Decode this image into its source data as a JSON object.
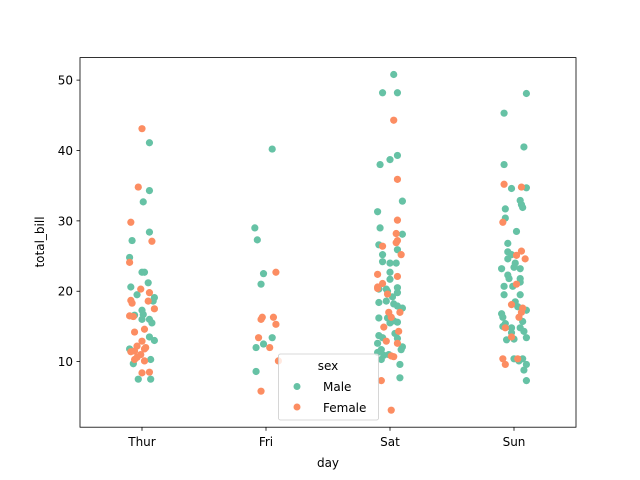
{
  "chart_data": {
    "type": "scatter",
    "subtype": "stripplot",
    "title": "",
    "xlabel": "day",
    "ylabel": "total_bill",
    "categories": [
      "Thur",
      "Fri",
      "Sat",
      "Sun"
    ],
    "xlim": [
      -0.5,
      3.5
    ],
    "ylim": [
      0.68,
      53.2
    ],
    "yticks": [
      10,
      20,
      30,
      40,
      50
    ],
    "ytick_labels": [
      "10",
      "20",
      "30",
      "40",
      "50"
    ],
    "grid": false,
    "legend": {
      "title": "sex",
      "placement": "bottom-center",
      "entries": [
        "Male",
        "Female"
      ]
    },
    "point_format": "[day_index, jitter, total_bill]",
    "series": [
      {
        "name": "Male",
        "color": "#66c2a5",
        "points": [
          [
            0,
            0.06,
            41.1
          ],
          [
            0,
            0.06,
            34.3
          ],
          [
            0,
            0.01,
            32.7
          ],
          [
            0,
            0.06,
            28.4
          ],
          [
            0,
            -0.08,
            27.2
          ],
          [
            0,
            -0.1,
            24.8
          ],
          [
            0,
            0,
            22.7
          ],
          [
            0,
            0.02,
            22.7
          ],
          [
            0,
            0.05,
            21.2
          ],
          [
            0,
            -0.09,
            20.6
          ],
          [
            0,
            -0.04,
            19.5
          ],
          [
            0,
            0.1,
            19.1
          ],
          [
            0,
            0.09,
            18.6
          ],
          [
            0,
            0,
            17.3
          ],
          [
            0,
            -0.06,
            16.6
          ],
          [
            0,
            0.01,
            16.7
          ],
          [
            0,
            0,
            16.0
          ],
          [
            0,
            0.06,
            16.0
          ],
          [
            0,
            0.08,
            15.5
          ],
          [
            0,
            0.06,
            13.5
          ],
          [
            0,
            0.1,
            13.0
          ],
          [
            0,
            -0.1,
            11.8
          ],
          [
            0,
            0.07,
            10.3
          ],
          [
            0,
            -0.07,
            9.7
          ],
          [
            0,
            0.07,
            7.5
          ],
          [
            0,
            -0.03,
            7.5
          ],
          [
            1,
            -0.09,
            29.0
          ],
          [
            1,
            -0.07,
            27.3
          ],
          [
            1,
            0.05,
            40.2
          ],
          [
            1,
            -0.02,
            22.5
          ],
          [
            1,
            -0.04,
            21.0
          ],
          [
            1,
            0.05,
            13.4
          ],
          [
            1,
            -0.02,
            12.5
          ],
          [
            1,
            -0.08,
            12.0
          ],
          [
            1,
            -0.08,
            8.6
          ],
          [
            2,
            0.03,
            50.8
          ],
          [
            2,
            -0.06,
            48.2
          ],
          [
            2,
            0.06,
            48.2
          ],
          [
            2,
            0.06,
            39.3
          ],
          [
            2,
            0,
            38.7
          ],
          [
            2,
            -0.08,
            38.0
          ],
          [
            2,
            0.1,
            32.8
          ],
          [
            2,
            -0.1,
            31.3
          ],
          [
            2,
            -0.08,
            29.0
          ],
          [
            2,
            0.1,
            28.1
          ],
          [
            2,
            -0.09,
            26.6
          ],
          [
            2,
            0.06,
            25.9
          ],
          [
            2,
            -0.06,
            25.2
          ],
          [
            2,
            -0.06,
            24.2
          ],
          [
            2,
            0,
            24.0
          ],
          [
            2,
            0.05,
            24.0
          ],
          [
            2,
            0,
            22.7
          ],
          [
            2,
            0,
            21.7
          ],
          [
            2,
            -0.09,
            20.3
          ],
          [
            2,
            -0.03,
            20.3
          ],
          [
            2,
            -0.02,
            20.0
          ],
          [
            2,
            0.06,
            20.5
          ],
          [
            2,
            0.06,
            19.8
          ],
          [
            2,
            -0.09,
            18.4
          ],
          [
            2,
            -0.03,
            18.6
          ],
          [
            2,
            0.02,
            19.2
          ],
          [
            2,
            0.03,
            18.2
          ],
          [
            2,
            0.06,
            17.9
          ],
          [
            2,
            0.1,
            17.6
          ],
          [
            2,
            -0.09,
            16.2
          ],
          [
            2,
            -0.02,
            16.2
          ],
          [
            2,
            0,
            15.5
          ],
          [
            2,
            0.03,
            15.8
          ],
          [
            2,
            0.06,
            15.6
          ],
          [
            2,
            0.04,
            14.0
          ],
          [
            2,
            -0.09,
            13.7
          ],
          [
            2,
            -0.06,
            13.4
          ],
          [
            2,
            0.06,
            13.3
          ],
          [
            2,
            -0.1,
            12.6
          ],
          [
            2,
            0.1,
            12.1
          ],
          [
            2,
            0.09,
            11.7
          ],
          [
            2,
            -0.07,
            11.7
          ],
          [
            2,
            -0.1,
            11.3
          ],
          [
            2,
            -0.05,
            10.9
          ],
          [
            2,
            -0.01,
            11.0
          ],
          [
            2,
            -0.07,
            10.3
          ],
          [
            2,
            0.08,
            9.6
          ],
          [
            2,
            0.08,
            7.7
          ],
          [
            3,
            0.1,
            48.1
          ],
          [
            3,
            -0.08,
            45.3
          ],
          [
            3,
            0.08,
            40.5
          ],
          [
            3,
            -0.08,
            38.0
          ],
          [
            3,
            0.1,
            34.7
          ],
          [
            3,
            -0.02,
            34.6
          ],
          [
            3,
            0.05,
            32.9
          ],
          [
            3,
            0.06,
            32.3
          ],
          [
            3,
            0.07,
            31.9
          ],
          [
            3,
            -0.07,
            31.7
          ],
          [
            3,
            -0.07,
            30.4
          ],
          [
            3,
            0.02,
            28.5
          ],
          [
            3,
            -0.05,
            26.8
          ],
          [
            3,
            -0.05,
            25.6
          ],
          [
            3,
            -0.02,
            25.2
          ],
          [
            3,
            -0.05,
            24.6
          ],
          [
            3,
            0.01,
            24.0
          ],
          [
            3,
            0,
            23.4
          ],
          [
            3,
            -0.1,
            23.2
          ],
          [
            3,
            0.05,
            23.2
          ],
          [
            3,
            -0.05,
            22.3
          ],
          [
            3,
            -0.04,
            21.8
          ],
          [
            3,
            0.05,
            21.8
          ],
          [
            3,
            0.05,
            21.3
          ],
          [
            3,
            -0.08,
            20.7
          ],
          [
            3,
            -0.01,
            20.7
          ],
          [
            3,
            -0.08,
            19.5
          ],
          [
            3,
            0.05,
            19.5
          ],
          [
            3,
            0.01,
            18.5
          ],
          [
            3,
            0.03,
            17.8
          ],
          [
            3,
            0.1,
            17.3
          ],
          [
            3,
            0.07,
            15.7
          ],
          [
            3,
            -0.1,
            16.8
          ],
          [
            3,
            -0.09,
            16.3
          ],
          [
            3,
            -0.09,
            15.0
          ],
          [
            3,
            -0.07,
            15.4
          ],
          [
            3,
            -0.02,
            14.8
          ],
          [
            3,
            -0.02,
            14.1
          ],
          [
            3,
            0.05,
            14.8
          ],
          [
            3,
            0.08,
            14.3
          ],
          [
            3,
            0.1,
            13.4
          ],
          [
            3,
            -0.06,
            13.1
          ],
          [
            3,
            0,
            13.2
          ],
          [
            3,
            0,
            10.4
          ],
          [
            3,
            0.04,
            10.1
          ],
          [
            3,
            0.07,
            10.4
          ],
          [
            3,
            0.1,
            9.6
          ],
          [
            3,
            0.08,
            8.8
          ],
          [
            3,
            0.1,
            7.3
          ]
        ]
      },
      {
        "name": "Female",
        "color": "#fc8d62",
        "points": [
          [
            0,
            0,
            43.1
          ],
          [
            0,
            -0.03,
            34.8
          ],
          [
            0,
            -0.09,
            29.8
          ],
          [
            0,
            0.08,
            27.1
          ],
          [
            0,
            -0.1,
            24.1
          ],
          [
            0,
            -0.01,
            20.3
          ],
          [
            0,
            0.06,
            19.8
          ],
          [
            0,
            -0.09,
            18.7
          ],
          [
            0,
            -0.08,
            18.3
          ],
          [
            0,
            0.05,
            18.6
          ],
          [
            0,
            0.1,
            17.5
          ],
          [
            0,
            -0.1,
            16.5
          ],
          [
            0,
            -0.07,
            16.4
          ],
          [
            0,
            0.02,
            14.6
          ],
          [
            0,
            -0.06,
            14.2
          ],
          [
            0,
            0,
            12.9
          ],
          [
            0,
            -0.04,
            12.2
          ],
          [
            0,
            0.02,
            11.8
          ],
          [
            0,
            -0.06,
            11.5
          ],
          [
            0,
            0.03,
            12.0
          ],
          [
            0,
            -0.01,
            11.0
          ],
          [
            0,
            -0.09,
            11.4
          ],
          [
            0,
            -0.04,
            10.6
          ],
          [
            0,
            -0.06,
            10.3
          ],
          [
            0,
            0.02,
            10.1
          ],
          [
            0,
            0,
            8.4
          ],
          [
            0,
            0.06,
            8.5
          ],
          [
            1,
            0.08,
            22.7
          ],
          [
            1,
            -0.03,
            16.3
          ],
          [
            1,
            -0.04,
            16.0
          ],
          [
            1,
            0.06,
            16.3
          ],
          [
            1,
            0.08,
            15.3
          ],
          [
            1,
            -0.06,
            13.4
          ],
          [
            1,
            0.03,
            12.0
          ],
          [
            1,
            0.1,
            10.1
          ],
          [
            1,
            -0.04,
            5.8
          ],
          [
            2,
            0.03,
            44.3
          ],
          [
            2,
            0.06,
            35.9
          ],
          [
            2,
            0.06,
            30.1
          ],
          [
            2,
            0.05,
            28.2
          ],
          [
            2,
            0.06,
            27.2
          ],
          [
            2,
            0.05,
            26.9
          ],
          [
            2,
            -0.06,
            26.4
          ],
          [
            2,
            0.09,
            25.2
          ],
          [
            2,
            -0.1,
            22.4
          ],
          [
            2,
            0.06,
            22.1
          ],
          [
            2,
            -0.06,
            21.1
          ],
          [
            2,
            -0.1,
            20.6
          ],
          [
            2,
            -0.1,
            20.4
          ],
          [
            2,
            -0.02,
            19.6
          ],
          [
            2,
            -0.01,
            17.0
          ],
          [
            2,
            0.01,
            16.3
          ],
          [
            2,
            0.08,
            17.0
          ],
          [
            2,
            -0.05,
            14.9
          ],
          [
            2,
            0.07,
            14.3
          ],
          [
            2,
            -0.03,
            12.9
          ],
          [
            2,
            0.06,
            12.6
          ],
          [
            2,
            0.03,
            10.7
          ],
          [
            2,
            0.01,
            10.8
          ],
          [
            2,
            -0.07,
            7.3
          ],
          [
            2,
            0.01,
            3.1
          ],
          [
            3,
            -0.08,
            35.2
          ],
          [
            3,
            0.06,
            34.8
          ],
          [
            3,
            -0.09,
            29.8
          ],
          [
            3,
            0.06,
            25.7
          ],
          [
            3,
            0.02,
            25.1
          ],
          [
            3,
            0.09,
            24.6
          ],
          [
            3,
            0.02,
            21.0
          ],
          [
            3,
            -0.02,
            18.1
          ],
          [
            3,
            0.07,
            17.6
          ],
          [
            3,
            0.06,
            17.0
          ],
          [
            3,
            0.04,
            16.3
          ],
          [
            3,
            -0.07,
            14.8
          ],
          [
            3,
            -0.02,
            13.5
          ],
          [
            3,
            -0.09,
            10.4
          ],
          [
            3,
            -0.07,
            9.6
          ],
          [
            3,
            0.03,
            10.4
          ]
        ]
      }
    ]
  }
}
